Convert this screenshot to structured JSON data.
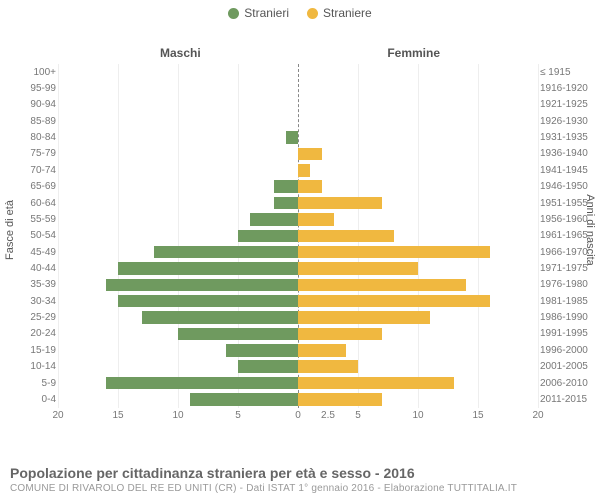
{
  "chart": {
    "type": "population_pyramid",
    "legend": [
      {
        "label": "Stranieri",
        "color": "#6f9a5f"
      },
      {
        "label": "Straniere",
        "color": "#f0b840"
      }
    ],
    "col_headers": {
      "left": "Maschi",
      "right": "Femmine"
    },
    "y_axis_titles": {
      "left": "Fasce di età",
      "right": "Anni di nascita"
    },
    "x_max": 20,
    "x_ticks_left": [
      20,
      15,
      10,
      5,
      0
    ],
    "x_ticks_right": [
      0,
      2.5,
      5,
      10,
      15,
      20
    ],
    "categories": [
      {
        "age": "100+",
        "birth": "≤ 1915",
        "m": 0,
        "f": 0
      },
      {
        "age": "95-99",
        "birth": "1916-1920",
        "m": 0,
        "f": 0
      },
      {
        "age": "90-94",
        "birth": "1921-1925",
        "m": 0,
        "f": 0
      },
      {
        "age": "85-89",
        "birth": "1926-1930",
        "m": 0,
        "f": 0
      },
      {
        "age": "80-84",
        "birth": "1931-1935",
        "m": 1,
        "f": 0
      },
      {
        "age": "75-79",
        "birth": "1936-1940",
        "m": 0,
        "f": 2
      },
      {
        "age": "70-74",
        "birth": "1941-1945",
        "m": 0,
        "f": 1
      },
      {
        "age": "65-69",
        "birth": "1946-1950",
        "m": 2,
        "f": 2
      },
      {
        "age": "60-64",
        "birth": "1951-1955",
        "m": 2,
        "f": 7
      },
      {
        "age": "55-59",
        "birth": "1956-1960",
        "m": 4,
        "f": 3
      },
      {
        "age": "50-54",
        "birth": "1961-1965",
        "m": 5,
        "f": 8
      },
      {
        "age": "45-49",
        "birth": "1966-1970",
        "m": 12,
        "f": 16
      },
      {
        "age": "40-44",
        "birth": "1971-1975",
        "m": 15,
        "f": 10
      },
      {
        "age": "35-39",
        "birth": "1976-1980",
        "m": 16,
        "f": 14
      },
      {
        "age": "30-34",
        "birth": "1981-1985",
        "m": 15,
        "f": 16
      },
      {
        "age": "25-29",
        "birth": "1986-1990",
        "m": 13,
        "f": 11
      },
      {
        "age": "20-24",
        "birth": "1991-1995",
        "m": 10,
        "f": 7
      },
      {
        "age": "15-19",
        "birth": "1996-2000",
        "m": 6,
        "f": 4
      },
      {
        "age": "10-14",
        "birth": "2001-2005",
        "m": 5,
        "f": 5
      },
      {
        "age": "5-9",
        "birth": "2006-2010",
        "m": 16,
        "f": 13
      },
      {
        "age": "0-4",
        "birth": "2011-2015",
        "m": 9,
        "f": 7
      }
    ],
    "bar_color_m": "#6f9a5f",
    "bar_color_f": "#f0b840",
    "background_color": "#ffffff",
    "grid_color": "#eeeeee",
    "centerline_color": "#888888",
    "label_fontsize": 10,
    "legend_fontsize": 12
  },
  "footer": {
    "title": "Popolazione per cittadinanza straniera per età e sesso - 2016",
    "subtitle": "COMUNE DI RIVAROLO DEL RE ED UNITI (CR) - Dati ISTAT 1° gennaio 2016 - Elaborazione TUTTITALIA.IT"
  }
}
